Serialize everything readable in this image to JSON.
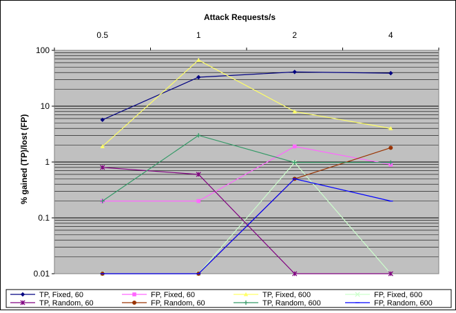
{
  "chart_data": {
    "type": "line",
    "title": "Attack Requests/s",
    "xlabel": "",
    "ylabel": "% gained (TP)/lost (FP)",
    "categories": [
      "0.5",
      "1",
      "2",
      "4"
    ],
    "yscale": "log",
    "ylim": [
      0.01,
      100
    ],
    "yticks": [
      "0.01",
      "0.1",
      "1",
      "10",
      "100"
    ],
    "grid": true,
    "legend_position": "bottom",
    "plot_background": "#c0c0c0",
    "series": [
      {
        "name": "TP, Fixed, 60",
        "values": [
          5.7,
          33,
          41,
          39
        ],
        "color": "#000080",
        "marker": "diamond"
      },
      {
        "name": "FP, Fixed, 60",
        "values": [
          0.2,
          0.2,
          1.9,
          0.9
        ],
        "color": "#ff66ff",
        "marker": "square"
      },
      {
        "name": "TP, Fixed, 600",
        "values": [
          1.9,
          67,
          8,
          4
        ],
        "color": "#ffff66",
        "marker": "triangle"
      },
      {
        "name": "FP, Fixed, 600",
        "values": [
          0.01,
          0.01,
          0.98,
          0.01
        ],
        "color": "#ccffcc",
        "marker": "x"
      },
      {
        "name": "TP, Random, 60",
        "values": [
          0.8,
          0.6,
          0.01,
          0.01
        ],
        "color": "#800080",
        "marker": "asterisk"
      },
      {
        "name": "FP, Random, 60",
        "values": [
          0.01,
          0.01,
          0.5,
          1.8
        ],
        "color": "#993300",
        "marker": "circle"
      },
      {
        "name": "TP, Random, 600",
        "values": [
          0.2,
          3,
          0.98,
          0.98
        ],
        "color": "#339966",
        "marker": "plus"
      },
      {
        "name": "FP, Random, 600",
        "values": [
          0.01,
          0.01,
          0.5,
          0.2
        ],
        "color": "#0000ff",
        "marker": "dash"
      }
    ]
  }
}
